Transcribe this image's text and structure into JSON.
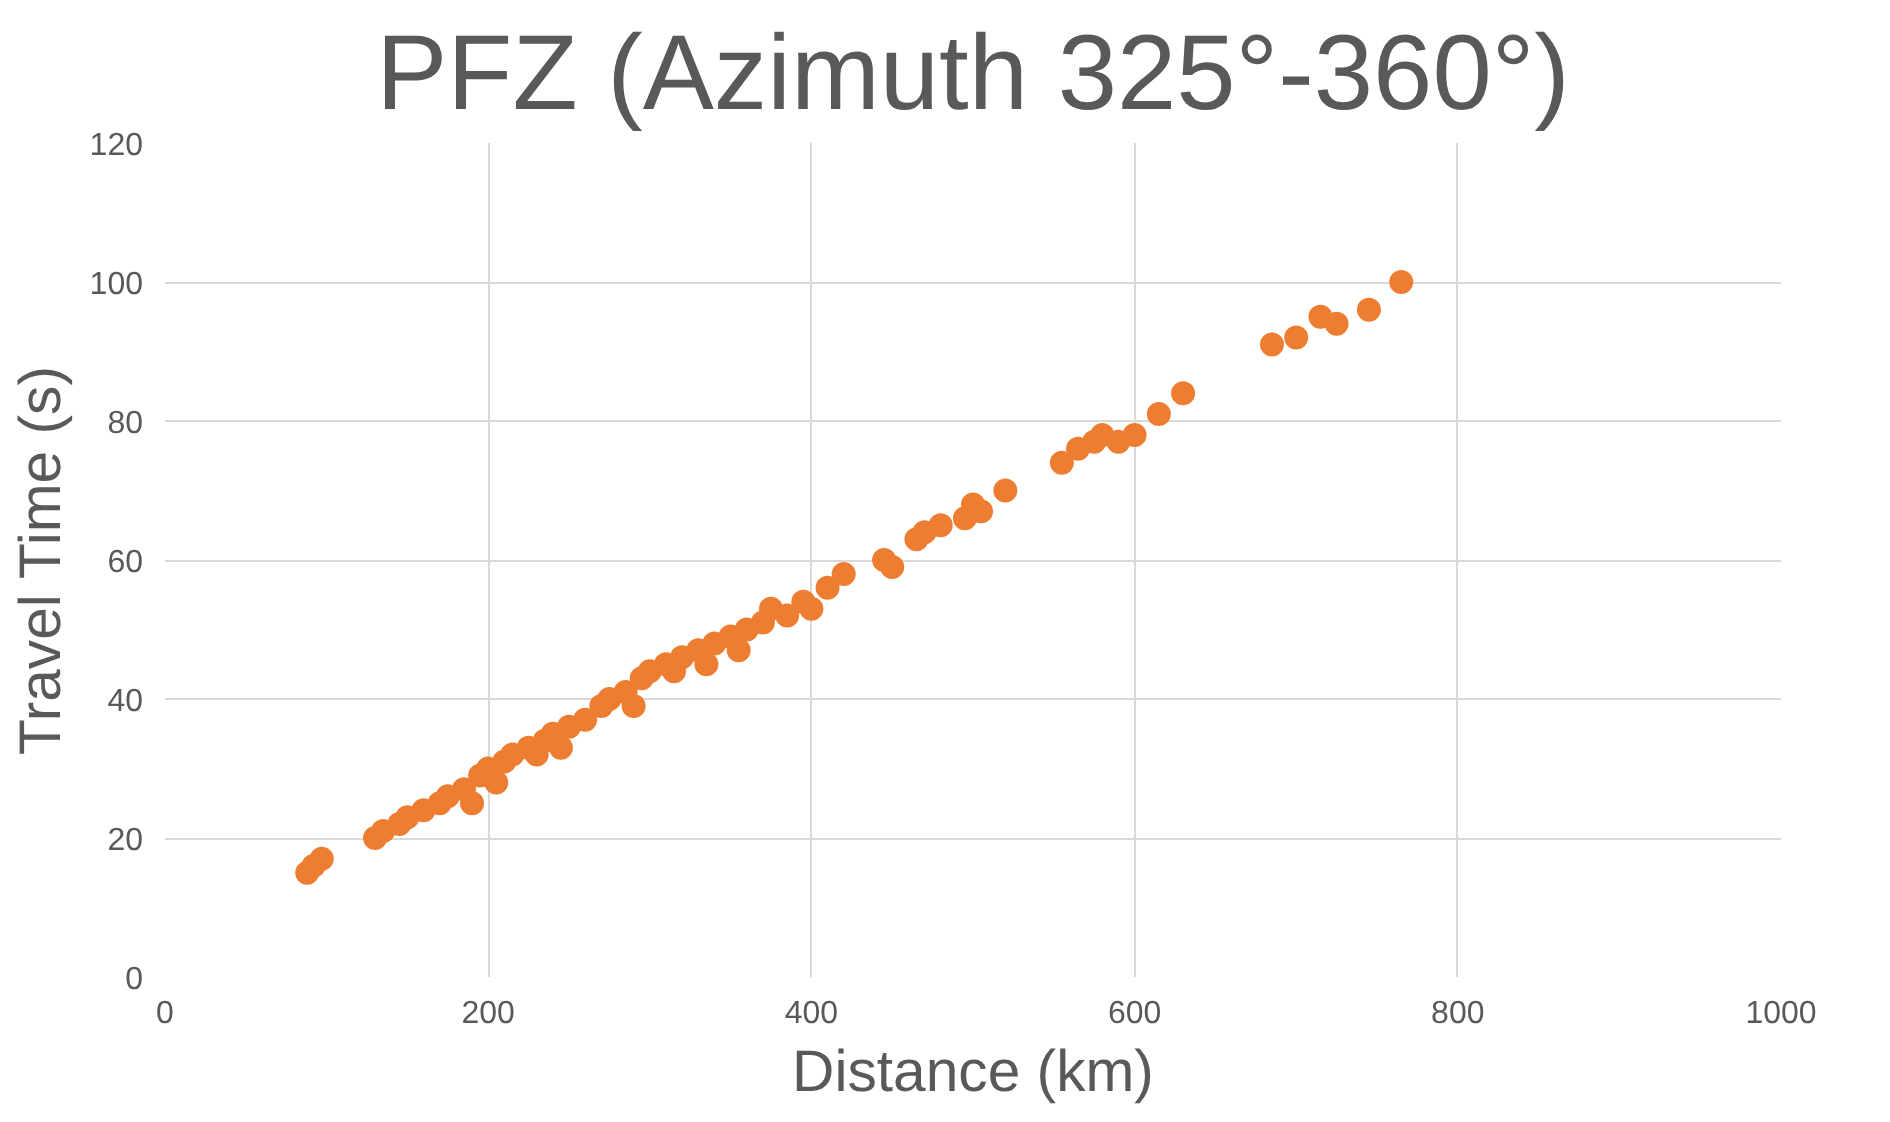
{
  "chart_data": {
    "type": "scatter",
    "title": "PFZ (Azimuth 325°-360°)",
    "xlabel": "Distance (km)",
    "ylabel": "Travel Time (s)",
    "xlim": [
      0,
      1000
    ],
    "ylim": [
      0,
      120
    ],
    "xticks": [
      0,
      200,
      400,
      600,
      800,
      1000
    ],
    "yticks": [
      0,
      20,
      40,
      60,
      80,
      100,
      120
    ],
    "grid": true,
    "marker": "circle",
    "series": [
      {
        "color": "#ed7d31",
        "x": [
          88,
          92,
          97,
          130,
          135,
          145,
          150,
          160,
          170,
          175,
          185,
          190,
          195,
          200,
          205,
          210,
          215,
          225,
          230,
          235,
          240,
          245,
          250,
          260,
          270,
          275,
          285,
          290,
          295,
          300,
          310,
          315,
          320,
          330,
          335,
          340,
          350,
          355,
          360,
          370,
          375,
          385,
          395,
          400,
          410,
          420,
          445,
          450,
          465,
          470,
          480,
          495,
          500,
          505,
          520,
          555,
          565,
          575,
          580,
          590,
          600,
          615,
          630,
          685,
          700,
          715,
          725,
          745,
          765
        ],
        "values": [
          15,
          16,
          17,
          20,
          21,
          22,
          23,
          24,
          25,
          26,
          27,
          25,
          29,
          30,
          28,
          31,
          32,
          33,
          32,
          34,
          35,
          33,
          36,
          37,
          39,
          40,
          41,
          39,
          43,
          44,
          45,
          44,
          46,
          47,
          45,
          48,
          49,
          47,
          50,
          51,
          53,
          52,
          54,
          53,
          56,
          58,
          60,
          59,
          63,
          64,
          65,
          66,
          68,
          67,
          70,
          74,
          76,
          77,
          78,
          77,
          78,
          81,
          84,
          91,
          92,
          95,
          94,
          96,
          100
        ]
      }
    ]
  }
}
